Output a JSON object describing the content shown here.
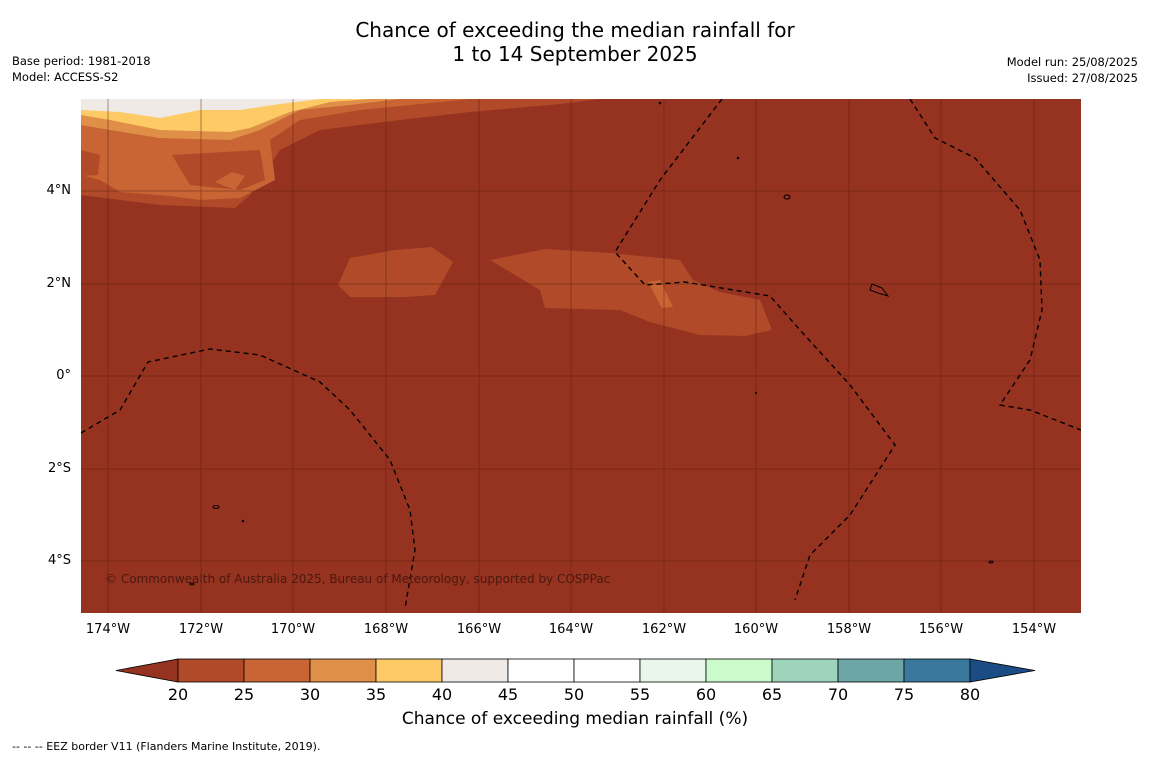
{
  "title_line1": "Chance of exceeding the median rainfall for",
  "title_line2": "1 to 14 September 2025",
  "base_period": "Base period: 1981-2018",
  "model": "Model: ACCESS-S2",
  "model_run": "Model run: 25/08/2025",
  "issued": "Issued: 27/08/2025",
  "y_labels": [
    "4°N",
    "2°N",
    "0°",
    "2°S",
    "4°S"
  ],
  "x_labels": [
    "174°W",
    "172°W",
    "170°W",
    "168°W",
    "166°W",
    "164°W",
    "162°W",
    "160°W",
    "158°W",
    "156°W",
    "154°W"
  ],
  "copyright": "© Commonwealth of Australia 2025, Bureau of Meteorology, supported by COSPPac",
  "colorbar": {
    "label": "Chance of exceeding median rainfall (%)",
    "ticks": [
      "20",
      "25",
      "30",
      "35",
      "40",
      "45",
      "50",
      "55",
      "60",
      "65",
      "70",
      "75",
      "80"
    ],
    "colors": [
      "#963220",
      "#b04a28",
      "#c96535",
      "#df8f48",
      "#fdca65",
      "#efeae6",
      "#ffffff",
      "#ffffff",
      "#e9f6e9",
      "#cbfbcb",
      "#9ed4bb",
      "#6ca6a6",
      "#3a789e",
      "#1c4c84"
    ]
  },
  "footnote": "--  --  -- EEZ border V11 (Flanders Marine Institute, 2019)."
}
